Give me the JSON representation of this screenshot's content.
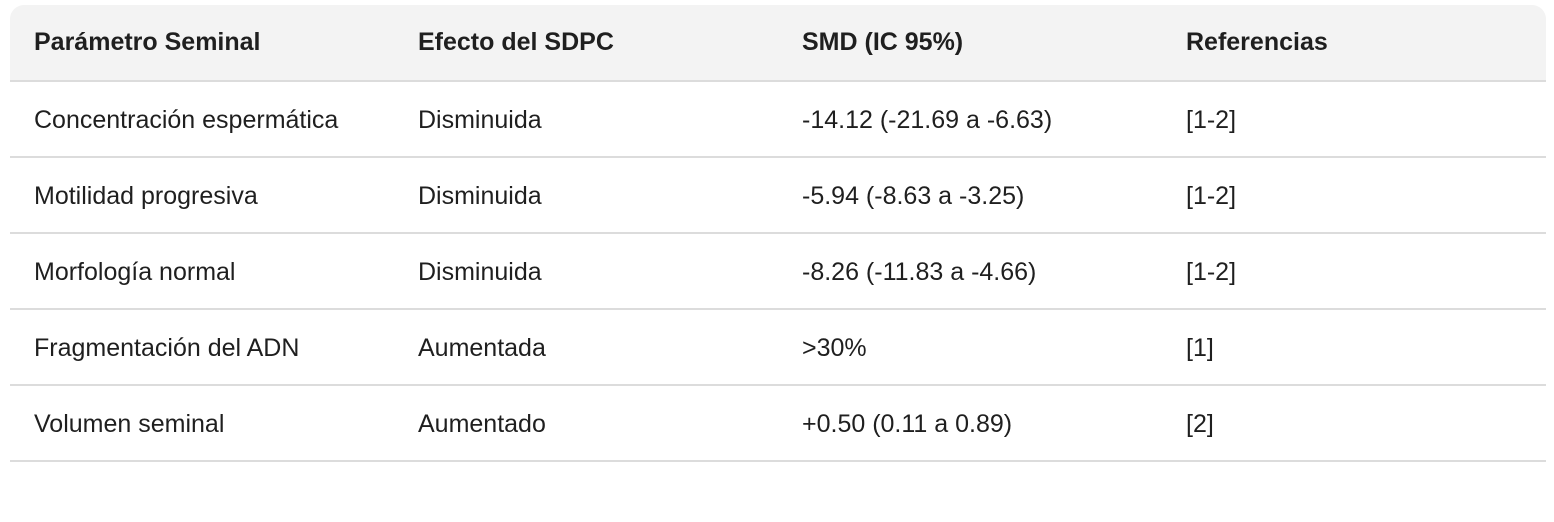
{
  "table": {
    "header": [
      "Parámetro Seminal",
      "Efecto del SDPC",
      "SMD (IC 95%)",
      "Referencias"
    ],
    "rows": [
      [
        "Concentración espermática",
        "Disminuida",
        "-14.12 (-21.69 a -6.63)",
        "[1-2]"
      ],
      [
        "Motilidad progresiva",
        "Disminuida",
        "-5.94 (-8.63 a -3.25)",
        "[1-2]"
      ],
      [
        "Morfología normal",
        "Disminuida",
        "-8.26 (-11.83 a -4.66)",
        "[1-2]"
      ],
      [
        "Fragmentación del ADN",
        "Aumentada",
        ">30%",
        "[1]"
      ],
      [
        "Volumen seminal",
        "Aumentado",
        "+0.50 (0.11 a 0.89)",
        "[2]"
      ]
    ]
  }
}
